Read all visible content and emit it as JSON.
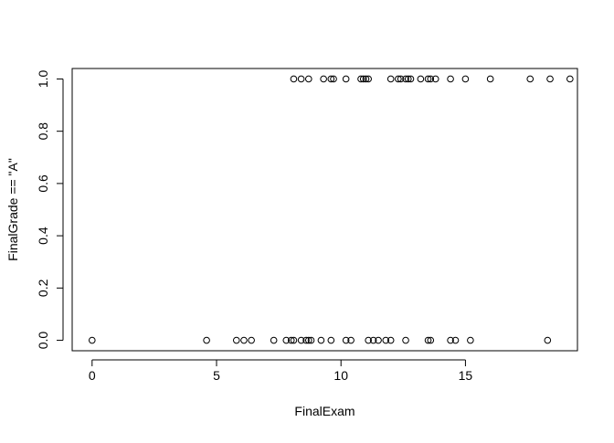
{
  "chart_data": {
    "type": "scatter",
    "title": "",
    "xlabel": "FinalExam",
    "ylabel": "FinalGrade == \"A\"",
    "xlim": [
      -0.8,
      19.5
    ],
    "ylim": [
      -0.04,
      1.04
    ],
    "xticks": [
      0,
      5,
      10,
      15
    ],
    "xtick_labels": [
      "0",
      "5",
      "10",
      "15"
    ],
    "yticks": [
      0.0,
      0.2,
      0.4,
      0.6,
      0.8,
      1.0
    ],
    "ytick_labels": [
      "0.0",
      "0.2",
      "0.4",
      "0.6",
      "0.8",
      "1.0"
    ],
    "grid": false,
    "marker": "open-circle",
    "marker_color": "#000000",
    "series": [
      {
        "x": [
          0,
          4.6,
          5.8,
          6.1,
          6.4,
          7.3,
          7.8,
          8.0,
          8.1,
          8.4,
          8.6,
          8.7,
          8.8,
          9.2,
          9.6,
          10.2,
          10.4,
          11.1,
          11.3,
          11.5,
          11.8,
          12.0,
          12.6,
          13.5,
          13.6,
          14.4,
          14.6,
          15.2,
          18.3,
          8.1,
          8.4,
          8.7,
          9.3,
          9.6,
          9.7,
          10.2,
          10.8,
          10.9,
          11.0,
          11.1,
          12.0,
          12.3,
          12.4,
          12.6,
          12.7,
          12.8,
          13.2,
          13.5,
          13.6,
          13.8,
          14.4,
          15.0,
          16.0,
          17.6,
          18.4,
          19.2
        ],
        "y": [
          0,
          0,
          0,
          0,
          0,
          0,
          0,
          0,
          0,
          0,
          0,
          0,
          0,
          0,
          0,
          0,
          0,
          0,
          0,
          0,
          0,
          0,
          0,
          0,
          0,
          0,
          0,
          0,
          0,
          1,
          1,
          1,
          1,
          1,
          1,
          1,
          1,
          1,
          1,
          1,
          1,
          1,
          1,
          1,
          1,
          1,
          1,
          1,
          1,
          1,
          1,
          1,
          1,
          1,
          1,
          1
        ]
      }
    ]
  }
}
